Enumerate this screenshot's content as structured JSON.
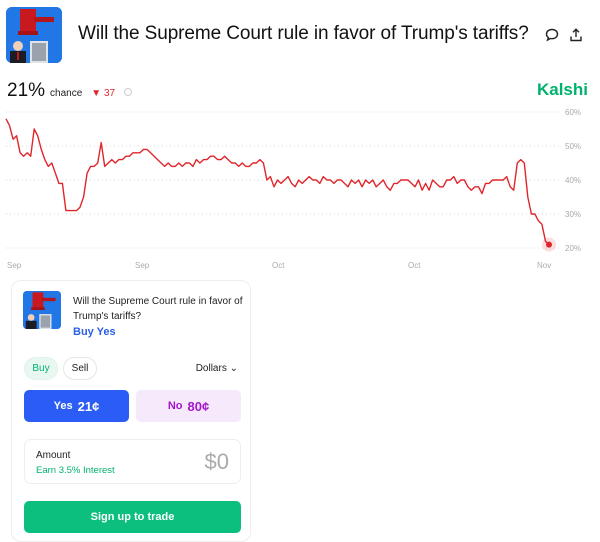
{
  "header": {
    "title": "Will the Supreme Court rule in favor of Trump's tariffs?",
    "comment_icon": "comment-icon",
    "share_icon": "share-icon"
  },
  "stats": {
    "percent": "21%",
    "chance_label": "chance",
    "delta_arrow": "▼",
    "delta": "37",
    "brand": "Kalshi"
  },
  "chart_data": {
    "type": "line",
    "title": "",
    "xlabel": "",
    "ylabel": "",
    "x_ticks": [
      "Sep",
      "Sep",
      "Oct",
      "Oct",
      "Nov"
    ],
    "y_ticks": [
      "60%",
      "50%",
      "40%",
      "30%",
      "20%"
    ],
    "ylim": [
      20,
      60
    ],
    "grid": true,
    "line_color": "#e0262b",
    "series": [
      {
        "name": "Yes chance",
        "values": [
          58,
          56,
          52,
          53,
          48,
          47,
          48,
          47,
          55,
          53,
          49,
          46,
          44,
          45,
          42,
          39,
          39,
          31,
          31,
          31,
          31,
          32,
          35,
          42,
          44,
          44,
          45,
          51,
          44,
          45,
          46,
          45,
          46,
          46,
          47,
          47,
          48,
          48,
          48,
          49,
          49,
          48,
          47,
          46,
          45,
          44,
          45,
          44,
          44,
          45,
          44,
          45,
          45,
          44,
          46,
          45,
          46,
          46,
          47,
          47,
          46,
          46,
          47,
          46,
          45,
          45,
          44,
          45,
          44,
          44,
          45,
          45,
          46,
          45,
          40,
          41,
          38,
          40,
          39,
          40,
          41,
          39,
          38,
          40,
          39,
          40,
          41,
          40,
          40,
          39,
          41,
          40,
          40,
          39,
          40,
          40,
          39,
          38,
          40,
          39,
          40,
          38,
          40,
          39,
          40,
          38,
          39,
          40,
          38,
          37,
          39,
          39,
          40,
          40,
          40,
          39,
          38,
          40,
          37,
          39,
          37,
          40,
          39,
          38,
          38,
          40,
          40,
          41,
          39,
          40,
          40,
          38,
          37,
          38,
          38,
          36,
          39,
          39,
          40,
          40,
          40,
          40,
          41,
          38,
          37,
          45,
          46,
          45,
          35,
          30,
          30,
          28,
          27,
          22,
          21
        ],
        "last_point": 21
      }
    ]
  },
  "trade_card": {
    "question": "Will the Supreme Court rule in favor of Trump's tariffs?",
    "buy_yes_label": "Buy Yes",
    "tab_buy": "Buy",
    "tab_sell": "Sell",
    "unit_select": "Dollars",
    "yes_label": "Yes",
    "yes_price": "21¢",
    "no_label": "No",
    "no_price": "80¢",
    "amount_label": "Amount",
    "interest_text": "Earn 3.5% Interest",
    "amount_value": "$0",
    "signup_label": "Sign up to trade"
  },
  "colors": {
    "brand_green": "#00b26d",
    "line_red": "#e0262b",
    "yes_blue": "#2b5cf6",
    "no_purple": "#a317c7"
  }
}
